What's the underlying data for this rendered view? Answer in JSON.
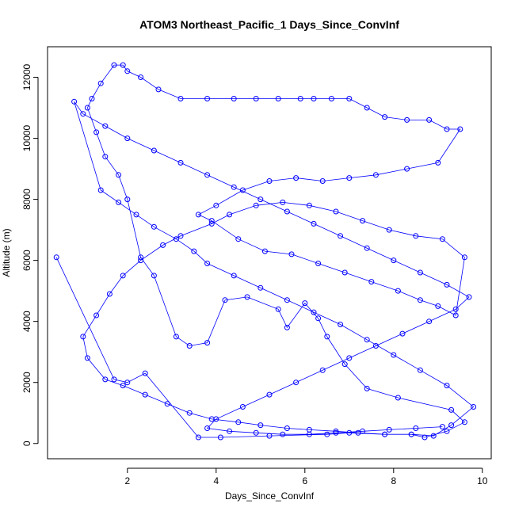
{
  "chart_data": {
    "type": "line",
    "title": "ATOM3 Northeast_Pacific_1 Days_Since_ConvInf",
    "xlabel": "Days_Since_ConvInf",
    "ylabel": "Altitude (m)",
    "xlim": [
      0.2,
      10.2
    ],
    "ylim": [
      -500,
      13000
    ],
    "xticks": [
      2,
      4,
      6,
      8,
      10
    ],
    "yticks": [
      0,
      2000,
      4000,
      6000,
      8000,
      10000,
      12000
    ],
    "grid": false,
    "legend": "none",
    "series_color": "#0000ff",
    "markers": "open-circle",
    "series": [
      {
        "name": "",
        "x": [
          0.4,
          1.7,
          2.0,
          2.4,
          3.6,
          4.1,
          5.2,
          6.5,
          7.0,
          7.8,
          8.4,
          8.7,
          9.2,
          9.6,
          9.3,
          8.1,
          7.4,
          6.9,
          6.5,
          6.3,
          6.0,
          5.6,
          5.4,
          4.7,
          4.2,
          3.8,
          3.4,
          3.1,
          2.6,
          2.3,
          2.0,
          1.8,
          1.5,
          1.3,
          1.1,
          1.2,
          1.4,
          1.7,
          1.9,
          2.0,
          2.3,
          2.7,
          3.2,
          3.8,
          4.4,
          4.9,
          5.4,
          5.9,
          6.2,
          6.6,
          7.0,
          7.4,
          7.8,
          8.3,
          8.8,
          9.2,
          9.5,
          9.0,
          8.3,
          7.6,
          7.0,
          6.4,
          5.8,
          5.2,
          4.6,
          4.0,
          3.6,
          3.9,
          4.5,
          5.1,
          5.7,
          6.3,
          6.9,
          7.5,
          8.1,
          8.6,
          9.0,
          9.4,
          9.6,
          9.1,
          8.5,
          7.9,
          7.3,
          6.7,
          6.1,
          5.5,
          4.9,
          4.3,
          3.9,
          3.2,
          2.8,
          2.3,
          1.9,
          1.6,
          1.3,
          1.0,
          1.1,
          1.5,
          1.9,
          2.4,
          2.9,
          3.4,
          3.9,
          4.5,
          5.0,
          5.6,
          6.1,
          6.7,
          7.2,
          7.8,
          8.4,
          8.9,
          9.3,
          9.8,
          9.2,
          8.6,
          8.0,
          7.4,
          6.8,
          6.2,
          5.6,
          5.0,
          4.4,
          3.8,
          3.5,
          3.1,
          2.6,
          2.2,
          1.8,
          1.4,
          0.8,
          1.0,
          1.5,
          2.0,
          2.6,
          3.2,
          3.8,
          4.4,
          5.0,
          5.6,
          6.2,
          6.8,
          7.4,
          8.0,
          8.6,
          9.2,
          9.7,
          9.4,
          8.8,
          8.2,
          7.6,
          7.0,
          6.4,
          5.8,
          5.2,
          4.6,
          4.0,
          3.8,
          4.3,
          4.9,
          5.5,
          6.1,
          6.7,
          7.3,
          7.9,
          8.5,
          9.1
        ],
        "y": [
          6100,
          2100,
          2000,
          2300,
          200,
          200,
          250,
          300,
          350,
          300,
          300,
          200,
          400,
          700,
          1100,
          1500,
          1800,
          2600,
          3500,
          4100,
          4600,
          3800,
          4400,
          4800,
          4700,
          3300,
          3200,
          3500,
          5500,
          6100,
          8000,
          8800,
          9400,
          10200,
          11000,
          11300,
          11800,
          12400,
          12400,
          12200,
          12000,
          11600,
          11300,
          11300,
          11300,
          11300,
          11300,
          11300,
          11300,
          11300,
          11300,
          11000,
          10700,
          10600,
          10600,
          10300,
          10300,
          9200,
          9000,
          8800,
          8700,
          8600,
          8700,
          8600,
          8300,
          7800,
          7500,
          7300,
          6700,
          6300,
          6200,
          5900,
          5600,
          5300,
          5000,
          4700,
          4500,
          4200,
          6100,
          6700,
          6800,
          7000,
          7300,
          7600,
          7800,
          7900,
          7800,
          7500,
          7200,
          6800,
          6500,
          6000,
          5500,
          4900,
          4200,
          3500,
          2800,
          2100,
          1900,
          1600,
          1300,
          1000,
          800,
          700,
          600,
          500,
          450,
          400,
          350,
          300,
          300,
          250,
          600,
          1200,
          1900,
          2400,
          2900,
          3400,
          3900,
          4300,
          4700,
          5100,
          5500,
          5900,
          6300,
          6700,
          7100,
          7500,
          7900,
          8300,
          11200,
          10800,
          10400,
          10000,
          9600,
          9200,
          8800,
          8400,
          8000,
          7600,
          7200,
          6800,
          6400,
          6000,
          5600,
          5200,
          4800,
          4400,
          4000,
          3600,
          3200,
          2800,
          2400,
          2000,
          1600,
          1200,
          800,
          500,
          400,
          350,
          300,
          300,
          350,
          400,
          450,
          500,
          550
        ]
      }
    ]
  }
}
